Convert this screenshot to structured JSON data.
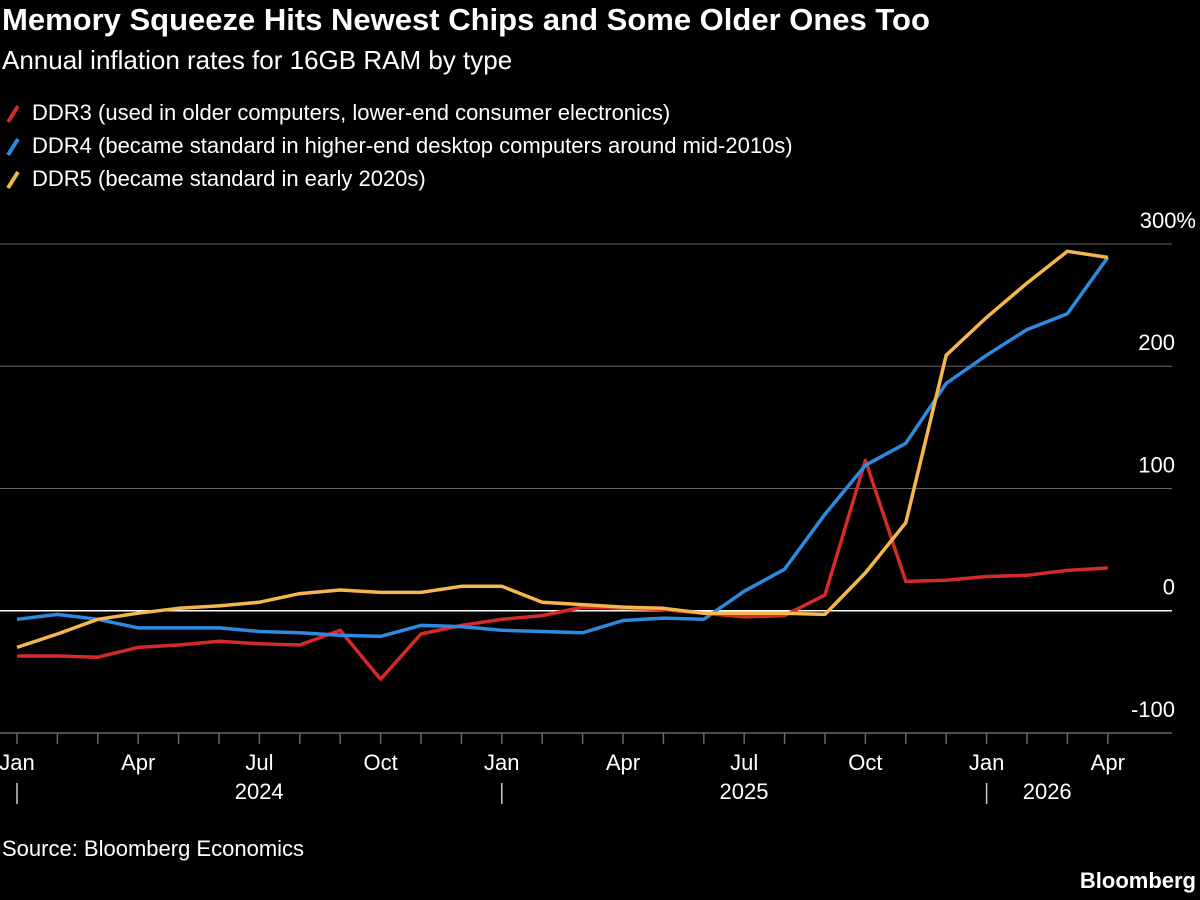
{
  "chart_data": {
    "type": "line",
    "title": "Memory Squeeze Hits Newest Chips and Some Older Ones Too",
    "subtitle": "Annual inflation rates for 16GB RAM by type",
    "source": "Source: Bloomberg Economics",
    "brand": "Bloomberg",
    "categories": [
      "Jan",
      null,
      null,
      "Apr",
      null,
      null,
      "Jul",
      null,
      null,
      "Oct",
      null,
      null,
      "Jan",
      null,
      null,
      "Apr",
      null,
      null,
      "Jul",
      null,
      null,
      "Oct",
      null,
      null,
      "Jan",
      null,
      null,
      "Apr"
    ],
    "years": [
      "2024",
      "2025",
      "2026"
    ],
    "series": [
      {
        "name": "DDR3 (used in older computers, lower-end consumer electronics)",
        "color": "#d42a2a",
        "values": [
          -37,
          -37,
          -38,
          -30,
          -28,
          -25,
          -27,
          -28,
          -16,
          -56,
          -19,
          -12,
          -7,
          -4,
          3,
          2,
          1,
          -2,
          -5,
          -4,
          13,
          123,
          24,
          25,
          28,
          29,
          33,
          35
        ]
      },
      {
        "name": "DDR4 (became standard in higher-end desktop computers around mid-2010s)",
        "color": "#2e8ae0",
        "values": [
          -7,
          -3,
          -7,
          -14,
          -14,
          -14,
          -17,
          -18,
          -20,
          -21,
          -12,
          -13,
          -16,
          -17,
          -18,
          -8,
          -6,
          -7,
          16,
          34,
          79,
          119,
          137,
          186,
          209,
          230,
          243,
          289
        ]
      },
      {
        "name": "DDR5 (became standard in early 2020s)",
        "color": "#f5b64c",
        "values": [
          -30,
          -19,
          -7,
          -2,
          2,
          4,
          7,
          14,
          17,
          15,
          15,
          20,
          20,
          7,
          5,
          3,
          2,
          -2,
          -2,
          -2,
          -3,
          31,
          72,
          209,
          240,
          268,
          294,
          289
        ]
      }
    ],
    "ylim": [
      -100,
      300
    ],
    "yticks": [
      -100,
      0,
      100,
      200,
      {
        "value": 300,
        "label": "300%"
      }
    ],
    "grid": true
  }
}
